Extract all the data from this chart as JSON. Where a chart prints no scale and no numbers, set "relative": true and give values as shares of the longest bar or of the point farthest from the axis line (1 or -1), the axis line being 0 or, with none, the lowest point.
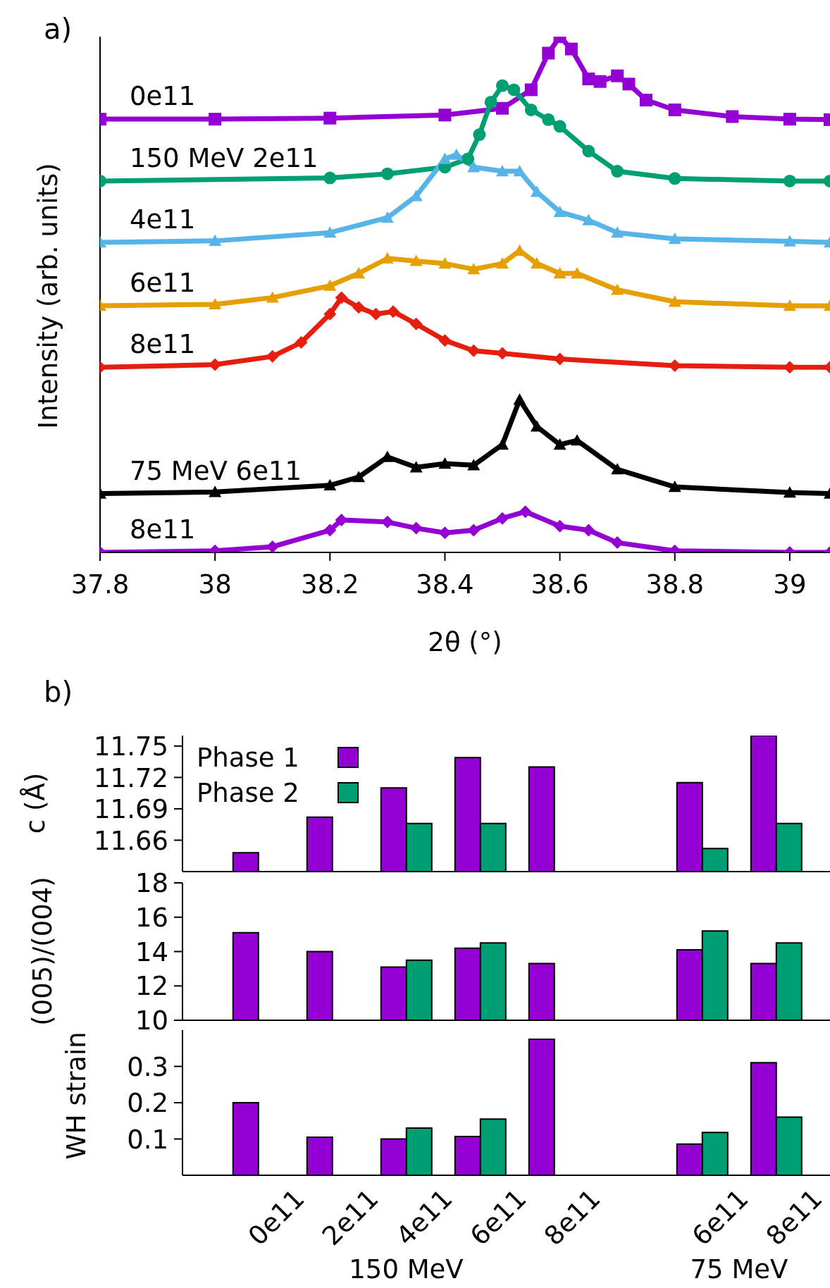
{
  "chart_data": [
    {
      "type": "line",
      "title": "a)",
      "xlabel": "2θ (°)",
      "ylabel": "Intensity (arb. units)",
      "relative": true,
      "xlim": [
        37.8,
        39.07
      ],
      "xticks": [
        37.8,
        38,
        38.2,
        38.4,
        38.6,
        38.8,
        39
      ],
      "grid": false,
      "legend": false,
      "line_style": "solid",
      "series": [
        {
          "name": "0e11",
          "color": "#9400d3",
          "marker": "square",
          "x": [
            37.8,
            38.0,
            38.2,
            38.4,
            38.5,
            38.55,
            38.58,
            38.6,
            38.62,
            38.65,
            38.67,
            38.7,
            38.72,
            38.75,
            38.8,
            38.9,
            39.0,
            39.07
          ],
          "values": [
            0.84,
            0.84,
            0.842,
            0.848,
            0.861,
            0.897,
            0.968,
            1,
            0.976,
            0.918,
            0.913,
            0.924,
            0.908,
            0.877,
            0.858,
            0.845,
            0.84,
            0.839
          ]
        },
        {
          "name": "150 MeV 2e11",
          "color": "#009e73",
          "marker": "circle",
          "x": [
            37.8,
            38.2,
            38.3,
            38.4,
            38.44,
            38.46,
            38.48,
            38.5,
            38.52,
            38.55,
            38.58,
            38.6,
            38.65,
            38.7,
            38.8,
            39.0,
            39.07
          ],
          "values": [
            0.72,
            0.726,
            0.734,
            0.747,
            0.763,
            0.81,
            0.873,
            0.905,
            0.897,
            0.858,
            0.839,
            0.826,
            0.778,
            0.739,
            0.725,
            0.72,
            0.72
          ]
        },
        {
          "name": "4e11",
          "color": "#56b4e9",
          "marker": "triangle",
          "x": [
            37.8,
            38.0,
            38.2,
            38.3,
            38.35,
            38.4,
            38.42,
            38.45,
            38.5,
            38.53,
            38.56,
            38.6,
            38.65,
            38.7,
            38.8,
            39.0,
            39.07
          ],
          "values": [
            0.601,
            0.604,
            0.62,
            0.649,
            0.691,
            0.763,
            0.771,
            0.747,
            0.739,
            0.739,
            0.699,
            0.66,
            0.644,
            0.62,
            0.608,
            0.603,
            0.601
          ]
        },
        {
          "name": "6e11",
          "color": "#e69f00",
          "marker": "triangle",
          "x": [
            37.8,
            38.0,
            38.1,
            38.2,
            38.25,
            38.3,
            38.35,
            38.4,
            38.45,
            38.5,
            38.53,
            38.56,
            38.6,
            38.63,
            38.7,
            38.8,
            39.0,
            39.07
          ],
          "values": [
            0.478,
            0.481,
            0.494,
            0.517,
            0.541,
            0.57,
            0.565,
            0.56,
            0.549,
            0.56,
            0.585,
            0.56,
            0.541,
            0.541,
            0.509,
            0.486,
            0.478,
            0.478
          ]
        },
        {
          "name": "8e11",
          "color": "#e51e10",
          "marker": "diamond",
          "x": [
            37.8,
            38.0,
            38.1,
            38.15,
            38.2,
            38.22,
            38.25,
            38.28,
            38.31,
            38.35,
            38.4,
            38.45,
            38.5,
            38.6,
            38.8,
            39.0,
            39.07
          ],
          "values": [
            0.359,
            0.364,
            0.38,
            0.407,
            0.462,
            0.494,
            0.475,
            0.462,
            0.467,
            0.443,
            0.411,
            0.391,
            0.386,
            0.375,
            0.362,
            0.359,
            0.359
          ]
        },
        {
          "name": "75 MeV 6e11",
          "color": "#000000",
          "marker": "triangle",
          "x": [
            37.8,
            38.0,
            38.2,
            38.25,
            38.3,
            38.35,
            38.4,
            38.45,
            38.5,
            38.53,
            38.56,
            38.6,
            38.63,
            38.7,
            38.8,
            39.0,
            39.07
          ],
          "values": [
            0.114,
            0.117,
            0.13,
            0.146,
            0.185,
            0.165,
            0.172,
            0.169,
            0.209,
            0.296,
            0.244,
            0.209,
            0.217,
            0.161,
            0.127,
            0.116,
            0.114
          ]
        },
        {
          "name": "8e11",
          "color": "#9400d3",
          "marker": "diamond",
          "x": [
            37.8,
            38.0,
            38.1,
            38.2,
            38.22,
            38.3,
            38.35,
            38.4,
            38.45,
            38.5,
            38.54,
            38.6,
            38.65,
            38.7,
            38.8,
            39.0,
            39.07
          ],
          "values": [
            0,
            0.003,
            0.011,
            0.043,
            0.063,
            0.059,
            0.047,
            0.038,
            0.043,
            0.066,
            0.079,
            0.051,
            0.043,
            0.019,
            0.003,
            0,
            0
          ]
        }
      ]
    },
    {
      "type": "bar",
      "title": "b)",
      "ylabel": "c (Å)",
      "categories": [
        "0e11",
        "2e11",
        "4e11",
        "6e11",
        "8e11",
        null,
        "6e11",
        "8e11"
      ],
      "ylim": [
        11.63,
        11.76
      ],
      "yticks": [
        11.66,
        11.69,
        11.72,
        11.75
      ],
      "tick_labels": "y",
      "grid": false,
      "legend": "top left",
      "series": [
        {
          "name": "Phase 1",
          "color": "#9400d3",
          "values": [
            11.648,
            11.682,
            11.71,
            11.739,
            11.73,
            null,
            11.715,
            11.76
          ]
        },
        {
          "name": "Phase 2",
          "color": "#009e73",
          "values": [
            null,
            null,
            11.676,
            11.676,
            null,
            null,
            11.652,
            11.676
          ]
        }
      ]
    },
    {
      "type": "bar",
      "ylabel": "(005)/(004)",
      "categories": [
        "0e11",
        "2e11",
        "4e11",
        "6e11",
        "8e11",
        null,
        "6e11",
        "8e11"
      ],
      "ylim": [
        10,
        18
      ],
      "yticks": [
        10,
        12,
        14,
        16,
        18
      ],
      "tick_labels": "y",
      "grid": false,
      "series": [
        {
          "color": "#9400d3",
          "values": [
            15.1,
            14.0,
            13.1,
            14.2,
            13.3,
            null,
            14.1,
            13.3
          ]
        },
        {
          "color": "#009e73",
          "values": [
            null,
            null,
            13.5,
            14.5,
            null,
            null,
            15.2,
            14.5
          ]
        }
      ]
    },
    {
      "type": "bar",
      "ylabel": "WH strain",
      "categories": [
        "0e11",
        "2e11",
        "4e11",
        "6e11",
        "8e11",
        null,
        "6e11",
        "8e11"
      ],
      "ylim": [
        0,
        0.4
      ],
      "yticks": [
        0.1,
        0.2,
        0.3
      ],
      "grid": false,
      "annotations": [
        "150 MeV",
        "75 MeV"
      ],
      "series": [
        {
          "color": "#9400d3",
          "values": [
            0.2,
            0.105,
            0.1,
            0.107,
            0.375,
            null,
            0.086,
            0.31
          ]
        },
        {
          "color": "#009e73",
          "values": [
            null,
            null,
            0.13,
            0.155,
            null,
            null,
            0.118,
            0.16
          ]
        }
      ]
    }
  ]
}
